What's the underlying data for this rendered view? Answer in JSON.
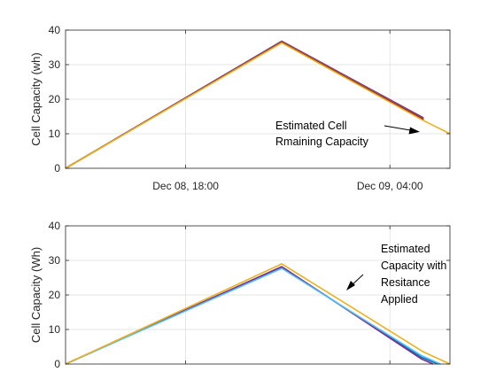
{
  "chart_data": [
    {
      "type": "line",
      "ylabel": "Cell Capacity (wh)",
      "xlim": [
        0,
        16
      ],
      "ylim": [
        0,
        40
      ],
      "yticks": [
        0,
        10,
        20,
        30,
        40
      ],
      "xtick_positions": [
        5,
        13.5
      ],
      "xtick_labels": [
        "Dec 08, 18:00",
        "Dec 09, 04:00"
      ],
      "grid": true,
      "annotation": {
        "lines": [
          "Estimated Cell",
          "Rmaining Capacity"
        ]
      },
      "series": [
        {
          "color": "#0072bd",
          "x": [
            0,
            9,
            14.9
          ],
          "y": [
            0,
            36.5,
            14
          ]
        },
        {
          "color": "#d95319",
          "x": [
            0,
            9,
            14.9
          ],
          "y": [
            0,
            36.7,
            14.4
          ]
        },
        {
          "color": "#7e2f8e",
          "x": [
            0,
            9,
            14.9
          ],
          "y": [
            0,
            36.8,
            14.6
          ]
        },
        {
          "color": "#4dbeee",
          "x": [
            0,
            9,
            14.9
          ],
          "y": [
            0,
            36.4,
            13.9
          ]
        },
        {
          "color": "#77ac30",
          "x": [
            0,
            9,
            14.9
          ],
          "y": [
            0,
            36.6,
            14.2
          ]
        },
        {
          "color": "#a2142f",
          "x": [
            0,
            9,
            14.9
          ],
          "y": [
            0,
            36.5,
            14.1
          ]
        },
        {
          "color": "#edb120",
          "x": [
            0,
            9,
            14.9,
            16
          ],
          "y": [
            0,
            36.3,
            13.8,
            10
          ]
        }
      ]
    },
    {
      "type": "line",
      "ylabel": "Cell Capacity (Wh)",
      "xlim": [
        0,
        16
      ],
      "ylim": [
        0,
        40
      ],
      "yticks": [
        0,
        10,
        20,
        30,
        40
      ],
      "grid": true,
      "annotation": {
        "lines": [
          "Estimated",
          "Capacity with",
          "Resitance",
          "Applied"
        ]
      },
      "series": [
        {
          "color": "#0072bd",
          "x": [
            0,
            9,
            14.8,
            15.5
          ],
          "y": [
            0,
            28,
            2,
            0
          ]
        },
        {
          "color": "#7e2f8e",
          "x": [
            0,
            9,
            14.8,
            15.3
          ],
          "y": [
            0,
            28.2,
            1.5,
            0
          ]
        },
        {
          "color": "#4dbeee",
          "x": [
            0,
            9,
            14.8,
            15.6
          ],
          "y": [
            0,
            27.7,
            2.5,
            0
          ]
        },
        {
          "color": "#edb120",
          "x": [
            0,
            9,
            14.9,
            16
          ],
          "y": [
            0,
            29,
            3.5,
            0
          ]
        }
      ]
    }
  ]
}
